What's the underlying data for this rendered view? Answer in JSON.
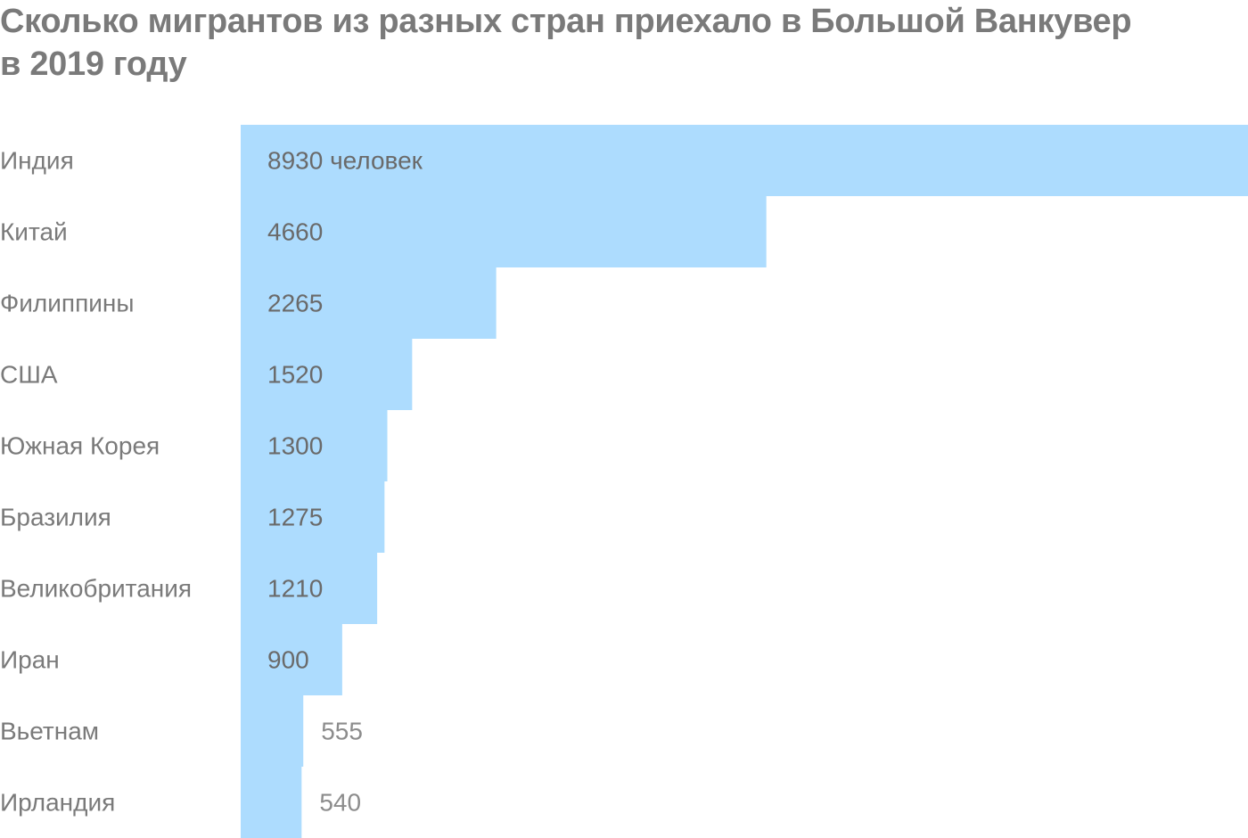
{
  "chart_data": {
    "type": "bar",
    "orientation": "horizontal",
    "title": "Сколько мигрантов из разных стран приехало в Большой Ванкувер в 2019 году",
    "title_lines": [
      "Сколько мигрантов из разных стран приехало в Большой Ванкувер",
      "в 2019 году"
    ],
    "categories": [
      "Индия",
      "Китай",
      "Филиппины",
      "США",
      "Южная Корея",
      "Бразилия",
      "Великобритания",
      "Иран",
      "Вьетнам",
      "Ирландия"
    ],
    "values": [
      8930,
      4660,
      2265,
      1520,
      1300,
      1275,
      1210,
      900,
      555,
      540
    ],
    "value_labels": [
      "8930 человек",
      "4660",
      "2265",
      "1520",
      "1300",
      "1275",
      "1210",
      "900",
      "555",
      "540"
    ],
    "xlim": [
      0,
      8930
    ],
    "grid": false,
    "legend": "none"
  },
  "colors": {
    "bar": "#addcfe",
    "text": "#7a7a7a",
    "value_text_inside": "#6a6a6a",
    "value_text_outside": "#8c8c8c",
    "background": "#ffffff"
  }
}
